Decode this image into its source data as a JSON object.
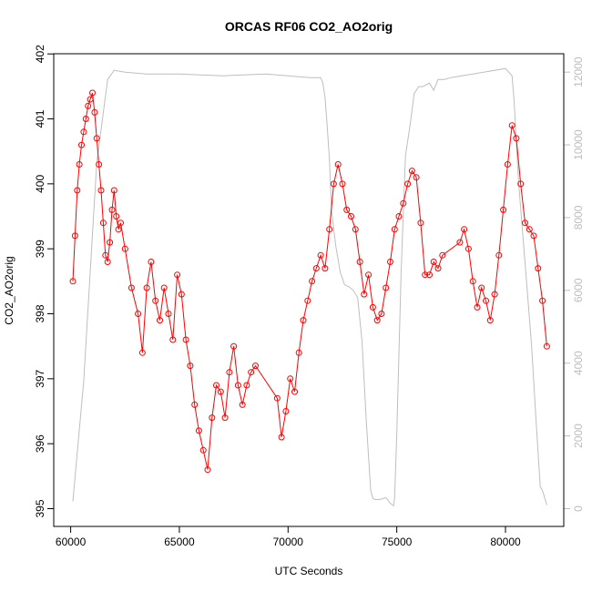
{
  "chart_data": {
    "type": "scatter",
    "title": "ORCAS RF06 CO2_AO2orig",
    "xlabel": "UTC Seconds",
    "ylabel": "CO2_AO2orig",
    "xlim": [
      60000,
      82000
    ],
    "ylim": [
      395,
      402
    ],
    "y2lim": [
      0,
      12500
    ],
    "x_ticks": [
      60000,
      65000,
      70000,
      75000,
      80000
    ],
    "y_ticks": [
      395,
      396,
      397,
      398,
      399,
      400,
      401,
      402
    ],
    "y2_ticks": [
      0,
      2000,
      4000,
      6000,
      8000,
      10000,
      12000
    ],
    "grid": false,
    "legend": "none",
    "colors": {
      "co2": "#ff0000",
      "altitude": "#bebebe",
      "axis": "#000000",
      "right_axis": "#bdbdbd"
    },
    "series": [
      {
        "role": "co2",
        "style": "points+lines",
        "x": [
          60100,
          60200,
          60300,
          60400,
          60500,
          60600,
          60700,
          60800,
          60900,
          61000,
          61100,
          61200,
          61300,
          61400,
          61500,
          61600,
          61700,
          61800,
          61900,
          62000,
          62100,
          62200,
          62300,
          62500,
          62800,
          63100,
          63300,
          63500,
          63700,
          63900,
          64100,
          64300,
          64500,
          64700,
          64900,
          65100,
          65300,
          65500,
          65700,
          65900,
          66100,
          66300,
          66500,
          66700,
          66900,
          67100,
          67300,
          67500,
          67700,
          67900,
          68100,
          68300,
          68500,
          69500,
          69700,
          69900,
          70100,
          70300,
          70500,
          70700,
          70900,
          71100,
          71300,
          71500,
          71700,
          71900,
          72100,
          72300,
          72500,
          72700,
          72900,
          73100,
          73300,
          73500,
          73700,
          73900,
          74100,
          74300,
          74500,
          74700,
          74900,
          75100,
          75300,
          75500,
          75700,
          75900,
          76100,
          76300,
          76500,
          76700,
          76900,
          77100,
          77900,
          78100,
          78300,
          78500,
          78700,
          78900,
          79100,
          79300,
          79500,
          79700,
          79900,
          80100,
          80300,
          80500,
          80700,
          80900,
          81100,
          81300,
          81500,
          81700,
          81900
        ],
        "y": [
          398.5,
          399.2,
          399.9,
          400.3,
          400.6,
          400.8,
          401.0,
          401.2,
          401.3,
          401.4,
          401.1,
          400.7,
          400.3,
          399.9,
          399.4,
          398.9,
          398.8,
          399.1,
          399.6,
          399.9,
          399.5,
          399.3,
          399.4,
          399.0,
          398.4,
          398.0,
          397.4,
          398.4,
          398.8,
          398.2,
          397.9,
          398.4,
          398.0,
          397.6,
          398.6,
          398.3,
          397.6,
          397.2,
          396.6,
          396.2,
          395.9,
          395.6,
          396.4,
          396.9,
          396.8,
          396.4,
          397.1,
          397.5,
          396.9,
          396.6,
          396.9,
          397.1,
          397.2,
          396.7,
          396.1,
          396.5,
          397.0,
          396.8,
          397.4,
          397.9,
          398.2,
          398.5,
          398.7,
          398.9,
          398.7,
          399.3,
          400.0,
          400.3,
          400.0,
          399.6,
          399.5,
          399.3,
          398.8,
          398.3,
          398.6,
          398.1,
          397.9,
          398.0,
          398.4,
          398.8,
          399.3,
          399.5,
          399.7,
          400.0,
          400.2,
          400.1,
          399.4,
          398.6,
          398.6,
          398.8,
          398.7,
          398.9,
          399.1,
          399.3,
          399.0,
          398.5,
          398.1,
          398.4,
          398.2,
          397.9,
          398.3,
          398.9,
          399.6,
          400.3,
          400.9,
          400.7,
          400.0,
          399.4,
          399.3,
          399.2,
          398.7,
          398.2,
          397.5
        ]
      },
      {
        "role": "altitude",
        "axis": "right",
        "style": "line",
        "x": [
          60100,
          60600,
          61200,
          61700,
          62000,
          62500,
          63500,
          65000,
          67000,
          69000,
          70000,
          71000,
          71500,
          71600,
          71700,
          71800,
          71900,
          72000,
          72200,
          72400,
          72600,
          72800,
          73000,
          73200,
          73400,
          73600,
          73800,
          73900,
          74000,
          74200,
          74500,
          74700,
          74800,
          74850,
          74900,
          75000,
          75200,
          75400,
          75600,
          75800,
          76000,
          76200,
          76500,
          76700,
          76900,
          77200,
          77500,
          78000,
          79000,
          80000,
          80300,
          80400,
          80600,
          80800,
          81000,
          81200,
          81400,
          81600,
          81700,
          81800,
          81900
        ],
        "y": [
          200,
          3500,
          9500,
          11800,
          12050,
          12000,
          11950,
          11950,
          11900,
          11950,
          11900,
          11850,
          11850,
          11700,
          11300,
          10500,
          9600,
          8200,
          7200,
          6500,
          6150,
          6100,
          6000,
          5800,
          4600,
          2400,
          500,
          280,
          250,
          250,
          300,
          150,
          100,
          80,
          300,
          2000,
          6500,
          9700,
          10500,
          11400,
          11600,
          11600,
          11700,
          11500,
          11800,
          11800,
          11850,
          11900,
          12000,
          12100,
          11900,
          11200,
          9000,
          7500,
          6000,
          4500,
          2500,
          600,
          500,
          300,
          100
        ]
      }
    ]
  }
}
